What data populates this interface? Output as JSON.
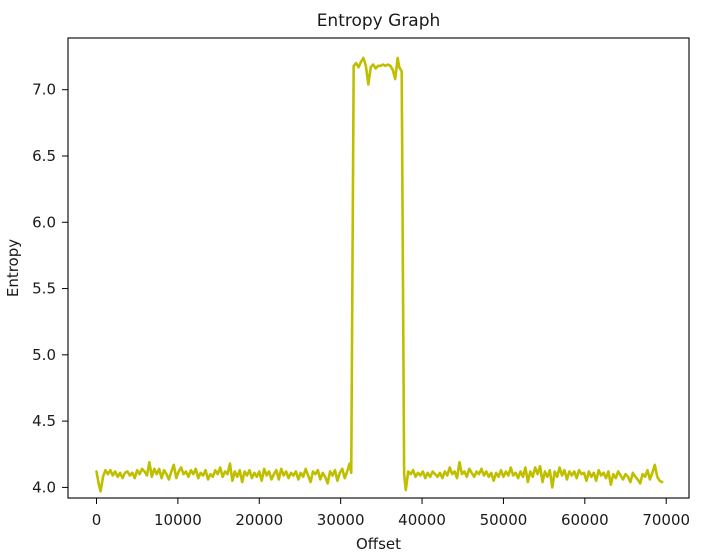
{
  "chart_data": {
    "type": "line",
    "title": "Entropy Graph",
    "xlabel": "Offset",
    "ylabel": "Entropy",
    "xlim": [
      -3500,
      72800
    ],
    "ylim": [
      3.92,
      7.39
    ],
    "xticks": [
      0,
      10000,
      20000,
      30000,
      40000,
      50000,
      60000,
      70000
    ],
    "yticks": [
      4.0,
      4.5,
      5.0,
      5.5,
      6.0,
      6.5,
      7.0
    ],
    "xtick_labels": [
      "0",
      "10000",
      "20000",
      "30000",
      "40000",
      "50000",
      "60000",
      "70000"
    ],
    "ytick_labels": [
      "4.0",
      "4.5",
      "5.0",
      "5.5",
      "6.0",
      "6.5",
      "7.0"
    ],
    "grid": false,
    "legend": "none",
    "line_color": "#bfbf00",
    "series": [
      {
        "color": "#bfbf00",
        "points": [
          [
            0,
            4.12
          ],
          [
            300,
            4.02
          ],
          [
            500,
            3.97
          ],
          [
            800,
            4.08
          ],
          [
            1100,
            4.13
          ],
          [
            1400,
            4.1
          ],
          [
            1700,
            4.13
          ],
          [
            2000,
            4.09
          ],
          [
            2300,
            4.12
          ],
          [
            2600,
            4.08
          ],
          [
            2900,
            4.11
          ],
          [
            3200,
            4.07
          ],
          [
            3500,
            4.11
          ],
          [
            3800,
            4.12
          ],
          [
            4100,
            4.09
          ],
          [
            4400,
            4.11
          ],
          [
            4700,
            4.07
          ],
          [
            5000,
            4.13
          ],
          [
            5300,
            4.1
          ],
          [
            5600,
            4.14
          ],
          [
            5900,
            4.12
          ],
          [
            6200,
            4.09
          ],
          [
            6500,
            4.19
          ],
          [
            6800,
            4.08
          ],
          [
            7100,
            4.14
          ],
          [
            7400,
            4.1
          ],
          [
            7700,
            4.14
          ],
          [
            8000,
            4.07
          ],
          [
            8300,
            4.13
          ],
          [
            8600,
            4.1
          ],
          [
            8900,
            4.06
          ],
          [
            9200,
            4.12
          ],
          [
            9500,
            4.17
          ],
          [
            9800,
            4.07
          ],
          [
            10100,
            4.12
          ],
          [
            10400,
            4.15
          ],
          [
            10700,
            4.1
          ],
          [
            11000,
            4.12
          ],
          [
            11300,
            4.08
          ],
          [
            11600,
            4.13
          ],
          [
            11900,
            4.1
          ],
          [
            12200,
            4.14
          ],
          [
            12500,
            4.07
          ],
          [
            12800,
            4.11
          ],
          [
            13100,
            4.09
          ],
          [
            13400,
            4.13
          ],
          [
            13700,
            4.06
          ],
          [
            14000,
            4.1
          ],
          [
            14300,
            4.08
          ],
          [
            14600,
            4.13
          ],
          [
            14900,
            4.1
          ],
          [
            15200,
            4.15
          ],
          [
            15500,
            4.08
          ],
          [
            15800,
            4.12
          ],
          [
            16100,
            4.1
          ],
          [
            16400,
            4.18
          ],
          [
            16700,
            4.05
          ],
          [
            17000,
            4.12
          ],
          [
            17300,
            4.08
          ],
          [
            17600,
            4.13
          ],
          [
            17900,
            4.04
          ],
          [
            18200,
            4.12
          ],
          [
            18500,
            4.09
          ],
          [
            18800,
            4.13
          ],
          [
            19100,
            4.07
          ],
          [
            19400,
            4.11
          ],
          [
            19700,
            4.08
          ],
          [
            20000,
            4.12
          ],
          [
            20300,
            4.05
          ],
          [
            20600,
            4.14
          ],
          [
            20900,
            4.09
          ],
          [
            21200,
            4.12
          ],
          [
            21500,
            4.06
          ],
          [
            21800,
            4.1
          ],
          [
            22100,
            4.13
          ],
          [
            22400,
            4.06
          ],
          [
            22700,
            4.14
          ],
          [
            23000,
            4.09
          ],
          [
            23300,
            4.12
          ],
          [
            23600,
            4.07
          ],
          [
            23900,
            4.11
          ],
          [
            24200,
            4.09
          ],
          [
            24500,
            4.12
          ],
          [
            24800,
            4.06
          ],
          [
            25100,
            4.11
          ],
          [
            25400,
            4.08
          ],
          [
            25700,
            4.14
          ],
          [
            26000,
            4.09
          ],
          [
            26300,
            4.04
          ],
          [
            26600,
            4.12
          ],
          [
            26900,
            4.1
          ],
          [
            27200,
            4.13
          ],
          [
            27500,
            4.06
          ],
          [
            27800,
            4.11
          ],
          [
            28100,
            4.08
          ],
          [
            28400,
            4.03
          ],
          [
            28700,
            4.12
          ],
          [
            29000,
            4.09
          ],
          [
            29300,
            4.13
          ],
          [
            29600,
            4.05
          ],
          [
            29900,
            4.11
          ],
          [
            30200,
            4.14
          ],
          [
            30500,
            4.07
          ],
          [
            30800,
            4.12
          ],
          [
            31100,
            4.18
          ],
          [
            31300,
            4.11
          ],
          [
            31600,
            7.18
          ],
          [
            31900,
            7.2
          ],
          [
            32200,
            7.17
          ],
          [
            32500,
            7.21
          ],
          [
            32800,
            7.24
          ],
          [
            33100,
            7.18
          ],
          [
            33400,
            7.04
          ],
          [
            33700,
            7.17
          ],
          [
            34000,
            7.19
          ],
          [
            34300,
            7.16
          ],
          [
            34600,
            7.18
          ],
          [
            34900,
            7.18
          ],
          [
            35200,
            7.19
          ],
          [
            35500,
            7.18
          ],
          [
            35800,
            7.19
          ],
          [
            36100,
            7.18
          ],
          [
            36400,
            7.15
          ],
          [
            36700,
            7.08
          ],
          [
            37000,
            7.24
          ],
          [
            37200,
            7.17
          ],
          [
            37500,
            7.14
          ],
          [
            37800,
            4.1
          ],
          [
            38000,
            3.98
          ],
          [
            38300,
            4.12
          ],
          [
            38600,
            4.1
          ],
          [
            38900,
            4.13
          ],
          [
            39200,
            4.08
          ],
          [
            39500,
            4.11
          ],
          [
            39800,
            4.09
          ],
          [
            40100,
            4.12
          ],
          [
            40400,
            4.07
          ],
          [
            40700,
            4.11
          ],
          [
            41000,
            4.08
          ],
          [
            41300,
            4.12
          ],
          [
            41600,
            4.1
          ],
          [
            41900,
            4.08
          ],
          [
            42200,
            4.11
          ],
          [
            42500,
            4.07
          ],
          [
            42800,
            4.12
          ],
          [
            43100,
            4.09
          ],
          [
            43400,
            4.15
          ],
          [
            43700,
            4.1
          ],
          [
            44000,
            4.12
          ],
          [
            44300,
            4.07
          ],
          [
            44600,
            4.19
          ],
          [
            44900,
            4.1
          ],
          [
            45200,
            4.12
          ],
          [
            45500,
            4.08
          ],
          [
            45800,
            4.14
          ],
          [
            46100,
            4.11
          ],
          [
            46400,
            4.08
          ],
          [
            46700,
            4.12
          ],
          [
            47000,
            4.1
          ],
          [
            47300,
            4.14
          ],
          [
            47600,
            4.09
          ],
          [
            47900,
            4.12
          ],
          [
            48200,
            4.08
          ],
          [
            48500,
            4.11
          ],
          [
            48800,
            4.05
          ],
          [
            49100,
            4.11
          ],
          [
            49400,
            4.08
          ],
          [
            49700,
            4.13
          ],
          [
            50000,
            4.08
          ],
          [
            50300,
            4.12
          ],
          [
            50600,
            4.09
          ],
          [
            50900,
            4.15
          ],
          [
            51200,
            4.09
          ],
          [
            51500,
            4.11
          ],
          [
            51800,
            4.07
          ],
          [
            52100,
            4.12
          ],
          [
            52400,
            4.08
          ],
          [
            52700,
            4.15
          ],
          [
            53000,
            4.04
          ],
          [
            53300,
            4.12
          ],
          [
            53600,
            4.08
          ],
          [
            53900,
            4.15
          ],
          [
            54200,
            4.1
          ],
          [
            54500,
            4.16
          ],
          [
            54800,
            4.04
          ],
          [
            55100,
            4.12
          ],
          [
            55400,
            4.08
          ],
          [
            55700,
            4.13
          ],
          [
            56000,
            4.0
          ],
          [
            56300,
            4.12
          ],
          [
            56600,
            4.08
          ],
          [
            56900,
            4.15
          ],
          [
            57200,
            4.09
          ],
          [
            57500,
            4.13
          ],
          [
            57800,
            4.06
          ],
          [
            58100,
            4.12
          ],
          [
            58400,
            4.09
          ],
          [
            58700,
            4.12
          ],
          [
            59000,
            4.07
          ],
          [
            59300,
            4.13
          ],
          [
            59600,
            4.1
          ],
          [
            59900,
            4.11
          ],
          [
            60200,
            4.05
          ],
          [
            60500,
            4.12
          ],
          [
            60800,
            4.08
          ],
          [
            61100,
            4.11
          ],
          [
            61400,
            4.05
          ],
          [
            61700,
            4.13
          ],
          [
            62000,
            4.09
          ],
          [
            62300,
            4.11
          ],
          [
            62600,
            4.07
          ],
          [
            62900,
            4.12
          ],
          [
            63200,
            4.02
          ],
          [
            63500,
            4.1
          ],
          [
            63800,
            4.07
          ],
          [
            64100,
            4.12
          ],
          [
            64400,
            4.09
          ],
          [
            64700,
            4.06
          ],
          [
            65000,
            4.1
          ],
          [
            65300,
            4.08
          ],
          [
            65600,
            4.04
          ],
          [
            65900,
            4.11
          ],
          [
            66200,
            4.08
          ],
          [
            66500,
            4.06
          ],
          [
            66800,
            4.03
          ],
          [
            67100,
            4.1
          ],
          [
            67400,
            4.08
          ],
          [
            67700,
            4.13
          ],
          [
            68000,
            4.06
          ],
          [
            68300,
            4.11
          ],
          [
            68600,
            4.17
          ],
          [
            68900,
            4.08
          ],
          [
            69200,
            4.05
          ],
          [
            69500,
            4.04
          ]
        ]
      }
    ]
  }
}
